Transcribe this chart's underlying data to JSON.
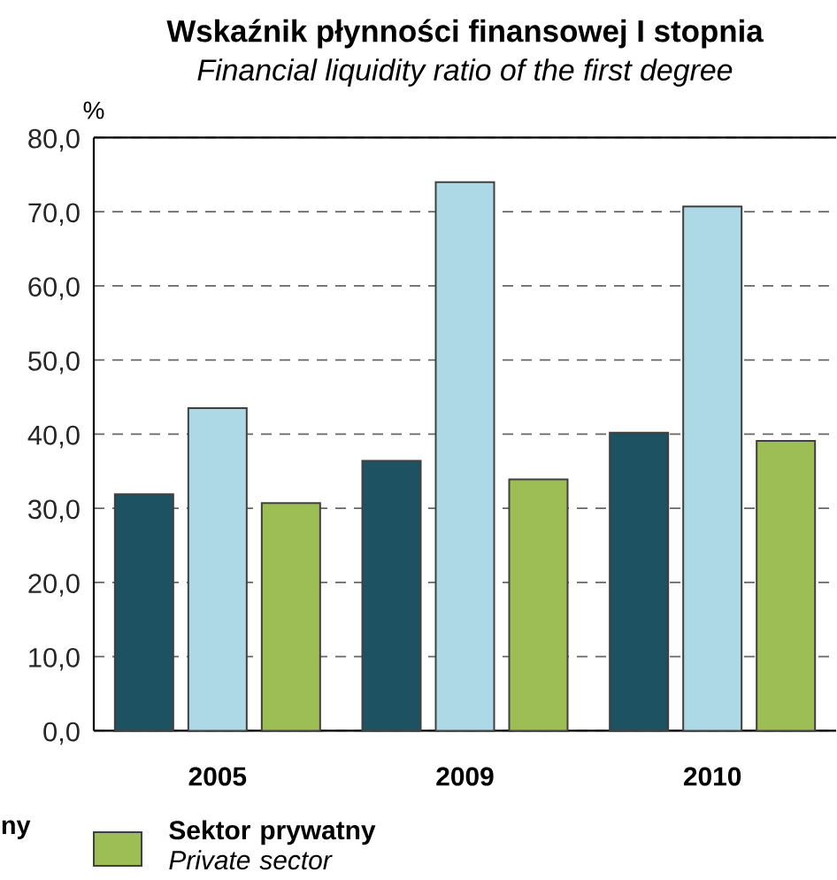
{
  "chart_data": {
    "type": "bar",
    "title": "Wskaźnik płynności finansowej I stopnia",
    "subtitle": "Financial liquidity ratio of the first degree",
    "ylabel": "%",
    "categories": [
      "2005",
      "2009",
      "2010"
    ],
    "series": [
      {
        "color": "#1c5262",
        "values": [
          31.9,
          36.4,
          40.2
        ]
      },
      {
        "color": "#add8e6",
        "values": [
          43.5,
          74.0,
          70.7
        ]
      },
      {
        "name": "**Sektor prywatny** *Private sector*",
        "color": "#9dbe55",
        "values": [
          30.7,
          33.9,
          39.1
        ]
      }
    ],
    "ylim": [
      0,
      80
    ],
    "yticks": [
      {
        "value": 0,
        "label": "0,0"
      },
      {
        "value": 10,
        "label": "10,0"
      },
      {
        "value": 20,
        "label": "20,0"
      },
      {
        "value": 30,
        "label": "30,0"
      },
      {
        "value": 40,
        "label": "40,0"
      },
      {
        "value": 50,
        "label": "50,0"
      },
      {
        "value": 60,
        "label": "60,0"
      },
      {
        "value": 70,
        "label": "70,0"
      },
      {
        "value": 80,
        "label": "80,0"
      }
    ],
    "grid": "y",
    "legend": "bottom",
    "annotations": [
      "ny"
    ]
  }
}
